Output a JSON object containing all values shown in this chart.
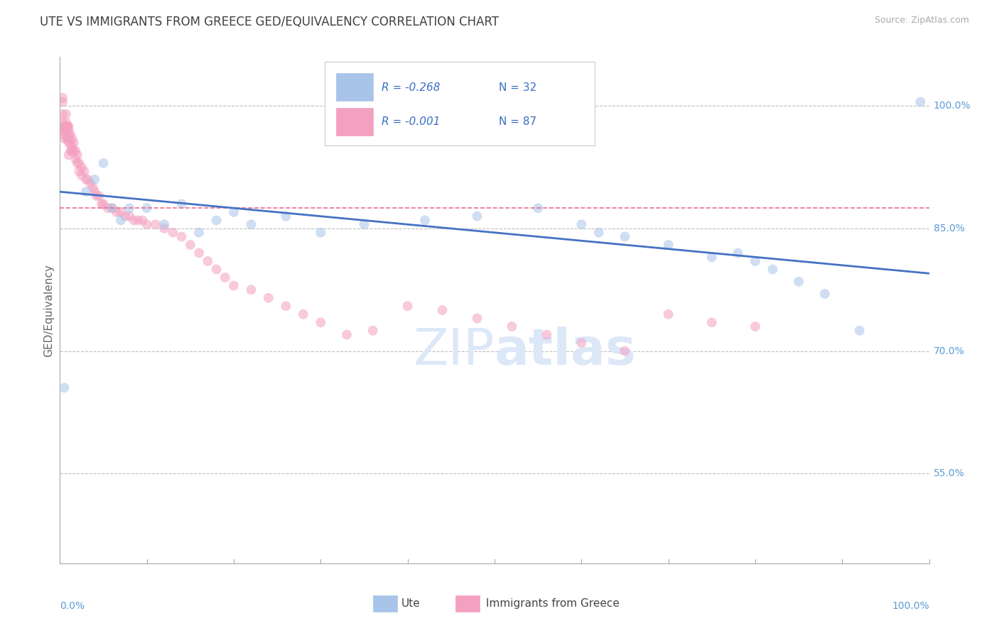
{
  "title": "UTE VS IMMIGRANTS FROM GREECE GED/EQUIVALENCY CORRELATION CHART",
  "source_text": "Source: ZipAtlas.com",
  "ylabel": "GED/Equivalency",
  "x_label_bottom_left": "0.0%",
  "x_label_bottom_right": "100.0%",
  "y_tick_labels": [
    "55.0%",
    "70.0%",
    "85.0%",
    "100.0%"
  ],
  "y_tick_values": [
    0.55,
    0.7,
    0.85,
    1.0
  ],
  "xlim": [
    0.0,
    1.0
  ],
  "ylim": [
    0.44,
    1.06
  ],
  "legend_blue_r": "R = -0.268",
  "legend_blue_n": "N = 32",
  "legend_pink_r": "R = -0.001",
  "legend_pink_n": "N = 87",
  "blue_color": "#a8c4e8",
  "pink_color": "#f4a0c0",
  "blue_line_color": "#4472c4",
  "pink_line_color": "#e87090",
  "title_color": "#404040",
  "axis_label_color": "#5b9bd5",
  "grid_color": "#c0c0c0",
  "watermark_color": "#dce8f8",
  "blue_scatter_x": [
    0.005,
    0.03,
    0.04,
    0.05,
    0.06,
    0.07,
    0.08,
    0.1,
    0.12,
    0.14,
    0.16,
    0.18,
    0.2,
    0.22,
    0.26,
    0.3,
    0.35,
    0.42,
    0.48,
    0.55,
    0.6,
    0.62,
    0.65,
    0.7,
    0.75,
    0.78,
    0.8,
    0.82,
    0.85,
    0.88,
    0.92,
    0.99
  ],
  "blue_scatter_y": [
    0.655,
    0.895,
    0.91,
    0.93,
    0.875,
    0.86,
    0.875,
    0.875,
    0.855,
    0.88,
    0.845,
    0.86,
    0.87,
    0.855,
    0.865,
    0.845,
    0.855,
    0.86,
    0.865,
    0.875,
    0.855,
    0.845,
    0.84,
    0.83,
    0.815,
    0.82,
    0.81,
    0.8,
    0.785,
    0.77,
    0.725,
    1.005
  ],
  "pink_scatter_x": [
    0.003,
    0.003,
    0.003,
    0.003,
    0.003,
    0.005,
    0.005,
    0.005,
    0.005,
    0.007,
    0.007,
    0.007,
    0.007,
    0.008,
    0.008,
    0.008,
    0.009,
    0.009,
    0.01,
    0.01,
    0.01,
    0.01,
    0.01,
    0.01,
    0.012,
    0.012,
    0.012,
    0.014,
    0.014,
    0.014,
    0.016,
    0.016,
    0.018,
    0.018,
    0.02,
    0.02,
    0.022,
    0.022,
    0.025,
    0.025,
    0.028,
    0.03,
    0.032,
    0.035,
    0.038,
    0.04,
    0.042,
    0.045,
    0.048,
    0.05,
    0.055,
    0.06,
    0.065,
    0.07,
    0.075,
    0.08,
    0.085,
    0.09,
    0.095,
    0.1,
    0.11,
    0.12,
    0.13,
    0.14,
    0.15,
    0.16,
    0.17,
    0.18,
    0.19,
    0.2,
    0.22,
    0.24,
    0.26,
    0.28,
    0.3,
    0.33,
    0.36,
    0.4,
    0.44,
    0.48,
    0.52,
    0.56,
    0.6,
    0.65,
    0.7,
    0.75,
    0.8
  ],
  "pink_scatter_y": [
    0.97,
    0.99,
    1.01,
    1.005,
    0.98,
    0.97,
    0.965,
    0.96,
    0.975,
    0.97,
    0.98,
    0.975,
    0.99,
    0.96,
    0.975,
    0.97,
    0.96,
    0.975,
    0.97,
    0.96,
    0.975,
    0.965,
    0.955,
    0.94,
    0.965,
    0.955,
    0.945,
    0.96,
    0.95,
    0.945,
    0.955,
    0.945,
    0.945,
    0.935,
    0.94,
    0.93,
    0.93,
    0.92,
    0.925,
    0.915,
    0.92,
    0.91,
    0.91,
    0.905,
    0.9,
    0.895,
    0.89,
    0.89,
    0.88,
    0.88,
    0.875,
    0.875,
    0.87,
    0.87,
    0.865,
    0.865,
    0.86,
    0.86,
    0.86,
    0.855,
    0.855,
    0.85,
    0.845,
    0.84,
    0.83,
    0.82,
    0.81,
    0.8,
    0.79,
    0.78,
    0.775,
    0.765,
    0.755,
    0.745,
    0.735,
    0.72,
    0.725,
    0.755,
    0.75,
    0.74,
    0.73,
    0.72,
    0.71,
    0.7,
    0.745,
    0.735,
    0.73
  ],
  "blue_trend_x_start": 0.0,
  "blue_trend_x_end": 1.0,
  "blue_trend_y_start": 0.895,
  "blue_trend_y_end": 0.795,
  "pink_trend_x_start": 0.0,
  "pink_trend_x_end": 1.0,
  "pink_trend_y_start": 0.875,
  "pink_trend_y_end": 0.875,
  "marker_size": 100,
  "marker_alpha": 0.55,
  "legend_color": "#3a70c4"
}
